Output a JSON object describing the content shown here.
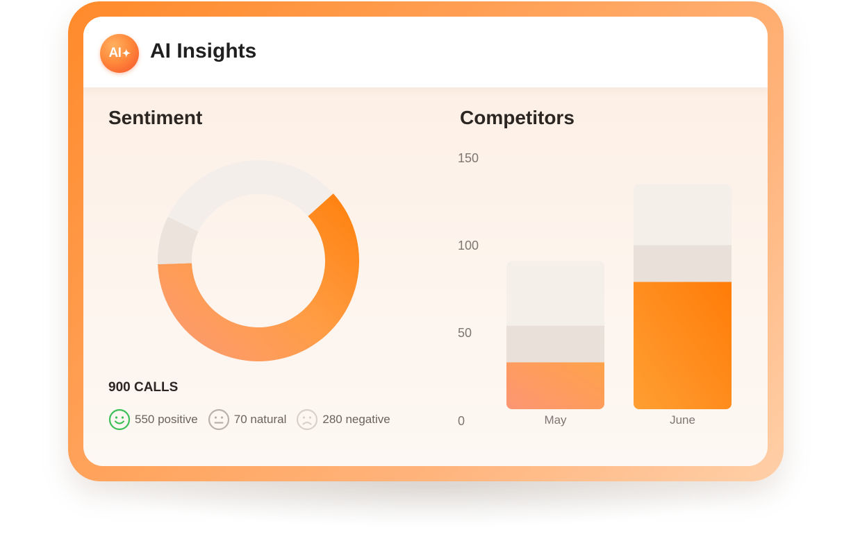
{
  "app": {
    "logo_text": "AI",
    "logo_spark": "✦",
    "title": "AI Insights"
  },
  "sentiment": {
    "title": "Sentiment",
    "total_label": "900 CALLS",
    "segments": [
      {
        "name": "positive",
        "count": 550,
        "label": "550 positive",
        "icon": "smile-icon",
        "color": "#ff8a1e"
      },
      {
        "name": "natural",
        "count": 70,
        "label": "70 natural",
        "icon": "neutral-face-icon",
        "color": "#ebe3dc"
      },
      {
        "name": "negative",
        "count": 280,
        "label": "280 negative",
        "icon": "frown-icon",
        "color": "#f4eeea"
      }
    ]
  },
  "competitors": {
    "title": "Competitors",
    "chart_data": {
      "type": "bar",
      "title": "Competitors",
      "categories": [
        "May",
        "June"
      ],
      "y_ticks": [
        "150",
        "100",
        "50",
        "0"
      ],
      "ylim": [
        0,
        150
      ],
      "stacked": true,
      "series": [
        {
          "values": [
            34,
            80
          ],
          "color": "#ff8a1e"
        },
        {
          "values": [
            21,
            21
          ],
          "color": "#e9e1d9"
        },
        {
          "values": [
            37,
            35
          ],
          "color": "#f5efea"
        }
      ]
    }
  }
}
